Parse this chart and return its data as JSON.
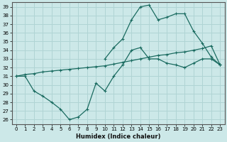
{
  "xlabel": "Humidex (Indice chaleur)",
  "ylabel": "",
  "background_color": "#cce8e8",
  "line_color": "#1a6b60",
  "grid_color": "#b0d4d4",
  "xlim": [
    -0.5,
    23.5
  ],
  "ylim": [
    25.5,
    39.5
  ],
  "x_ticks": [
    0,
    1,
    2,
    3,
    4,
    5,
    6,
    7,
    8,
    9,
    10,
    11,
    12,
    13,
    14,
    15,
    16,
    17,
    18,
    19,
    20,
    21,
    22,
    23
  ],
  "y_ticks": [
    26,
    27,
    28,
    29,
    30,
    31,
    32,
    33,
    34,
    35,
    36,
    37,
    38,
    39
  ],
  "line1_x": [
    0,
    1,
    2,
    3,
    4,
    5,
    6,
    7,
    8,
    9,
    10,
    11,
    12,
    13,
    14,
    15,
    16,
    17,
    18,
    19,
    20,
    21,
    22,
    23
  ],
  "line1_y": [
    31.0,
    31.0,
    29.3,
    28.7,
    28.0,
    27.2,
    26.0,
    26.3,
    27.2,
    30.2,
    29.3,
    31.0,
    32.3,
    34.0,
    34.3,
    33.0,
    33.0,
    32.5,
    32.3,
    32.0,
    32.5,
    33.0,
    33.0,
    32.3
  ],
  "line2_x": [
    0,
    1,
    2,
    3,
    4,
    5,
    6,
    7,
    8,
    9,
    10,
    11,
    12,
    13,
    14,
    15,
    16,
    17,
    18,
    19,
    20,
    21,
    22,
    23
  ],
  "line2_y": [
    31.0,
    31.2,
    31.3,
    31.5,
    31.6,
    31.7,
    31.8,
    31.9,
    32.0,
    32.1,
    32.2,
    32.4,
    32.6,
    32.8,
    33.0,
    33.2,
    33.4,
    33.5,
    33.7,
    33.8,
    34.0,
    34.2,
    34.5,
    32.3
  ],
  "line3_x": [
    10,
    11,
    12,
    13,
    14,
    15,
    16,
    17,
    18,
    19,
    20,
    21,
    22,
    23
  ],
  "line3_y": [
    33.0,
    34.3,
    35.3,
    37.5,
    39.0,
    39.2,
    37.5,
    37.8,
    38.2,
    38.2,
    36.2,
    34.8,
    33.2,
    32.3
  ]
}
